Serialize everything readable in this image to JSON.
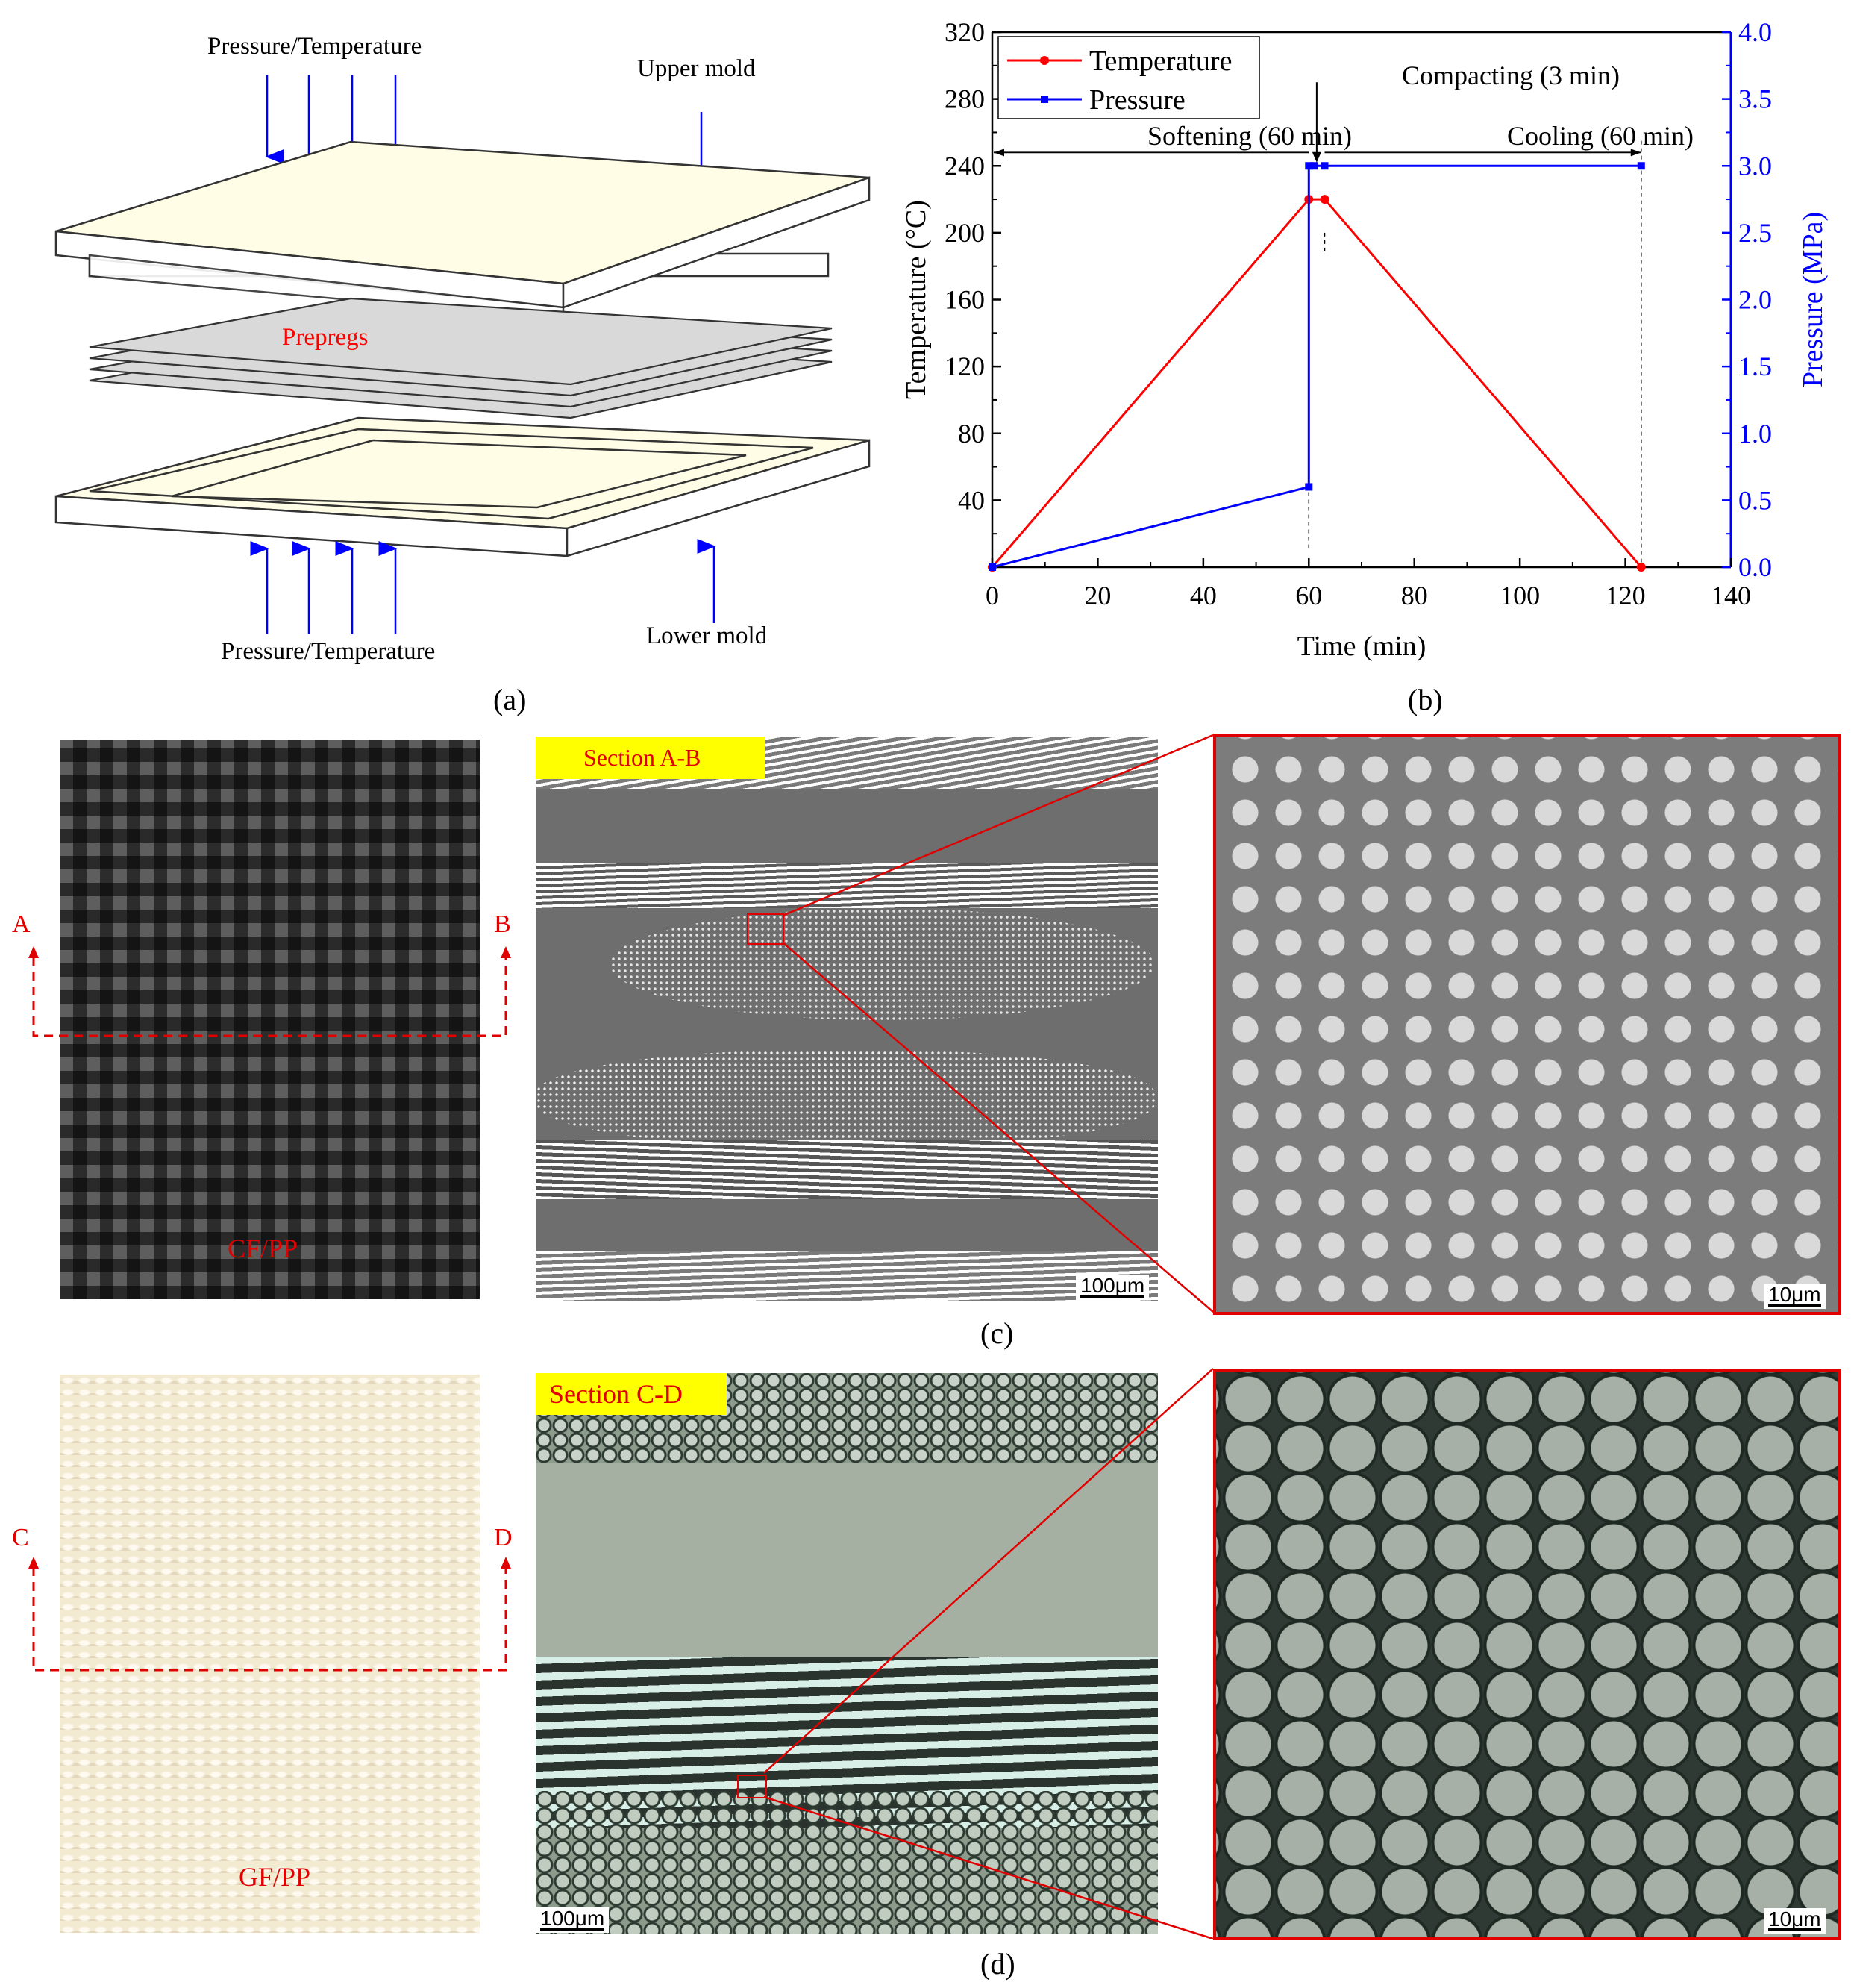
{
  "panel_a": {
    "pressure_temp_top": "Pressure/Temperature",
    "upper_mold": "Upper mold",
    "prepregs": "Prepregs",
    "pressure_temp_bottom": "Pressure/Temperature",
    "lower_mold": "Lower mold",
    "caption": "(a)",
    "colors": {
      "arrow": "#0000ff",
      "mold": "#fffde6",
      "prepreg": "#d9d9d9",
      "prepreg_label": "#ff0000"
    }
  },
  "panel_b": {
    "caption": "(b)",
    "annotations": {
      "compacting": "Compacting (3 min)",
      "softening": "Softening (60 min)",
      "cooling": "Cooling (60 min)"
    },
    "chart_data": {
      "type": "line",
      "xlabel": "Time (min)",
      "ylabel_left": "Temperature (°C)",
      "ylabel_right": "Pressure (MPa)",
      "xlim": [
        0,
        140
      ],
      "ylim_left": [
        0,
        320
      ],
      "ylim_right": [
        0,
        4.0
      ],
      "x_ticks": [
        "0",
        "20",
        "40",
        "60",
        "80",
        "100",
        "120",
        "140"
      ],
      "y_left_ticks": [
        "40",
        "80",
        "120",
        "160",
        "200",
        "240",
        "280",
        "320"
      ],
      "y_right_ticks": [
        "0.0",
        "0.5",
        "1.0",
        "1.5",
        "2.0",
        "2.5",
        "3.0",
        "3.5",
        "4.0"
      ],
      "grid": false,
      "legend_placement": "top-left",
      "series": [
        {
          "name": "Temperature",
          "axis": "left",
          "color": "#ff0000",
          "marker": "circle",
          "x": [
            0,
            60,
            63,
            123
          ],
          "y": [
            0,
            220,
            220,
            0
          ]
        },
        {
          "name": "Pressure",
          "axis": "right",
          "color": "#0000ff",
          "marker": "square",
          "x": [
            0,
            60,
            60,
            61,
            63,
            123
          ],
          "y": [
            0,
            0.6,
            3.0,
            3.0,
            3.0,
            3.0
          ]
        }
      ]
    }
  },
  "panel_c": {
    "side_left": "A",
    "side_right": "B",
    "material": "CF/PP",
    "section": "Section A-B",
    "scale_large": "100μm",
    "scale_small": "10μm",
    "caption": "(c)"
  },
  "panel_d": {
    "side_left": "C",
    "side_right": "D",
    "material": "GF/PP",
    "section": "Section C-D",
    "scale_large": "100μm",
    "scale_small": "10μm",
    "caption": "(d)"
  }
}
